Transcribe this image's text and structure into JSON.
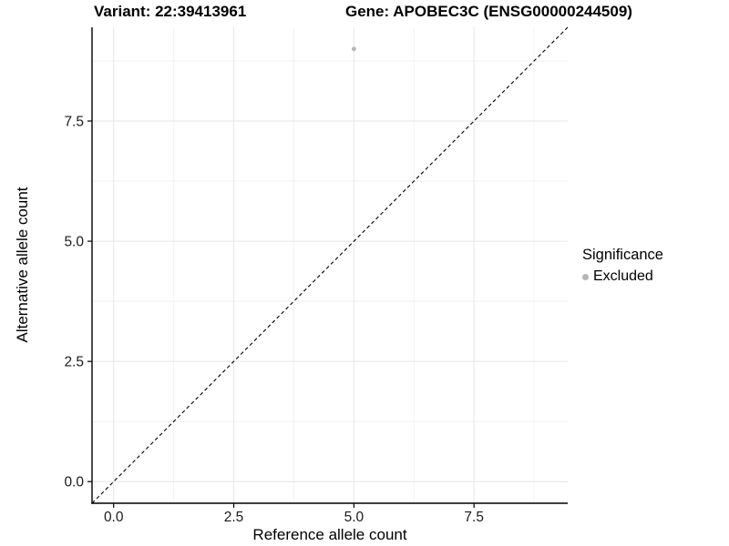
{
  "header": {
    "variant_title": "Variant: 22:39413961",
    "gene_title": "Gene: APOBEC3C (ENSG00000244509)"
  },
  "chart_data": {
    "type": "scatter",
    "title_left": "Variant: 22:39413961",
    "title_right": "Gene: APOBEC3C (ENSG00000244509)",
    "xlabel": "Reference allele count",
    "ylabel": "Alternative allele count",
    "xlim": [
      -0.45,
      9.45
    ],
    "ylim": [
      -0.45,
      9.45
    ],
    "x_major_ticks": [
      0,
      2.5,
      5,
      7.5
    ],
    "y_major_ticks": [
      0,
      2.5,
      5,
      7.5
    ],
    "x_tick_labels": [
      "0.0",
      "2.5",
      "5.0",
      "7.5"
    ],
    "y_tick_labels": [
      "0.0",
      "2.5",
      "5.0",
      "7.5"
    ],
    "x_minor_ticks": [
      1.25,
      3.75,
      6.25,
      8.75
    ],
    "y_minor_ticks": [
      1.25,
      3.75,
      6.25,
      8.75
    ],
    "grid": true,
    "grid_color_major": "#e6e6e6",
    "grid_color_minor": "#f2f2f2",
    "axis_line_color": "#000000",
    "series": [
      {
        "name": "Excluded",
        "color": "#b5b5b5",
        "marker": "circle",
        "points": [
          {
            "x": 5,
            "y": 9
          }
        ]
      }
    ],
    "reference_line": {
      "kind": "identity",
      "x1": -0.45,
      "y1": -0.45,
      "x2": 9.45,
      "y2": 9.45,
      "style": "dashed",
      "color": "#000000"
    },
    "legend": {
      "title": "Significance",
      "position": "right",
      "items": [
        {
          "label": "Excluded",
          "color": "#b5b5b5",
          "marker": "circle"
        }
      ]
    }
  }
}
